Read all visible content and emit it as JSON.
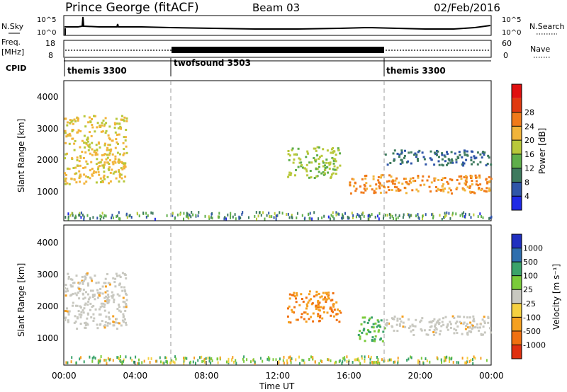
{
  "header": {
    "station": "Prince George (fitACF)",
    "beam": "Beam 03",
    "date": "02/Feb/2016"
  },
  "noise_panel": {
    "left_label": "N.Sky",
    "right_label": "N.Search",
    "left_ticks": [
      "10^5",
      "10^0"
    ],
    "right_ticks": [
      "10^5",
      "10^0"
    ]
  },
  "freq_panel": {
    "left_label_1": "Freq.",
    "left_label_2": "[MHz]",
    "right_label": "Nave",
    "left_ticks": [
      "18",
      "8"
    ],
    "right_ticks": [
      "60",
      "0"
    ]
  },
  "cpid": {
    "label": "CPID",
    "segments": [
      {
        "name": "themis 3300",
        "start_hour": 0,
        "end_hour": 6
      },
      {
        "name": "twofsound 3503",
        "start_hour": 6,
        "end_hour": 18
      },
      {
        "name": "themis 3300",
        "start_hour": 18,
        "end_hour": 24
      }
    ]
  },
  "power_panel": {
    "ylabel": "Slant Range [km]",
    "yticks": [
      "1000",
      "2000",
      "3000",
      "4000"
    ],
    "colorbar_title": "Power [dB]",
    "colorbar_labels": [
      "4",
      "8",
      "12",
      "16",
      "20",
      "24",
      "28"
    ],
    "colorbar_colors": [
      "#1f29e6",
      "#2f55a8",
      "#3e7a5e",
      "#5fae4a",
      "#b8c83a",
      "#f2b43a",
      "#f07a1a",
      "#e03a10",
      "#e01010"
    ]
  },
  "velocity_panel": {
    "ylabel": "Slant Range [km]",
    "yticks": [
      "1000",
      "2000",
      "3000",
      "4000"
    ],
    "colorbar_title": "Velocity [m s⁻¹]",
    "colorbar_labels": [
      "1000",
      "500",
      "100",
      "25",
      "-25",
      "-100",
      "-500",
      "-1000"
    ],
    "colorbar_colors": [
      "#2030c0",
      "#2f6fae",
      "#3aa36a",
      "#7acb3a",
      "#c8c8c0",
      "#f5d040",
      "#f5a020",
      "#f07010",
      "#e03010"
    ]
  },
  "x_axis": {
    "label": "Time UT",
    "ticks": [
      "00:00",
      "04:00",
      "08:00",
      "12:00",
      "16:00",
      "20:00",
      "00:00"
    ]
  },
  "chart_data": [
    {
      "type": "line",
      "title": "Prince George (fitACF)",
      "subtitle": "Beam 03",
      "xlabel": "Time UT",
      "ylabel": "N.Sky",
      "x_range_hours": [
        0,
        24
      ],
      "note_series": "noise level near constant through the day",
      "series": []
    },
    {
      "type": "heatmap",
      "title": "",
      "xlabel": "Time UT",
      "ylabel": "Slant Range [km]",
      "x_range_hours": [
        0,
        24
      ],
      "ylim": [
        0,
        4500
      ],
      "colorbar": {
        "label": "Power [dB]",
        "ticks": [
          4,
          8,
          12,
          16,
          20,
          24,
          28
        ]
      },
      "echo_regions": [
        {
          "t_start": 0.0,
          "t_end": 3.5,
          "range_min_km": 1200,
          "range_max_km": 3400,
          "power_db": 24
        },
        {
          "t_start": 12.5,
          "t_end": 15.5,
          "range_min_km": 1400,
          "range_max_km": 2400,
          "power_db": 20
        },
        {
          "t_start": 16.0,
          "t_end": 24.0,
          "range_min_km": 900,
          "range_max_km": 1500,
          "power_db": 28
        },
        {
          "t_start": 18.0,
          "t_end": 24.0,
          "range_min_km": 1800,
          "range_max_km": 2300,
          "power_db": 12
        }
      ]
    },
    {
      "type": "heatmap",
      "title": "",
      "xlabel": "Time UT",
      "ylabel": "Slant Range [km]",
      "x_range_hours": [
        0,
        24
      ],
      "ylim": [
        0,
        4500
      ],
      "colorbar": {
        "label": "Velocity [m s⁻¹]",
        "ticks": [
          1000,
          500,
          100,
          25,
          -25,
          -100,
          -500,
          -1000
        ]
      },
      "echo_regions": [
        {
          "t_start": 0.0,
          "t_end": 3.5,
          "range_min_km": 1200,
          "range_max_km": 3000,
          "velocity": 0
        },
        {
          "t_start": 12.5,
          "t_end": 15.5,
          "range_min_km": 1400,
          "range_max_km": 2400,
          "velocity": -300
        },
        {
          "t_start": 16.5,
          "t_end": 18.0,
          "range_min_km": 800,
          "range_max_km": 1600,
          "velocity": 150
        },
        {
          "t_start": 18.0,
          "t_end": 24.0,
          "range_min_km": 1000,
          "range_max_km": 1600,
          "velocity": 0
        }
      ]
    }
  ]
}
